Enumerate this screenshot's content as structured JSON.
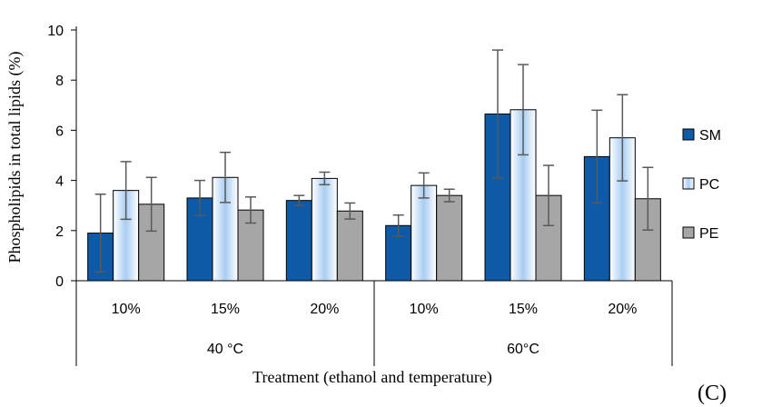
{
  "chart_data": {
    "type": "bar",
    "panel_label": "(C)",
    "ylabel": "Phospholipids in total lipids (%)",
    "xlabel": "Treatment (ethanol and temperature)",
    "ylim": [
      0,
      10
    ],
    "yticks": [
      0,
      2,
      4,
      6,
      8,
      10
    ],
    "categories": [
      "10%",
      "15%",
      "20%",
      "10%",
      "15%",
      "20%"
    ],
    "groups": [
      {
        "label": "40 °C",
        "span": [
          0,
          2
        ]
      },
      {
        "label": "60°C",
        "span": [
          3,
          5
        ]
      }
    ],
    "legend_position": "right",
    "grid": false,
    "series": [
      {
        "name": "SM",
        "color": "#0e5aa7",
        "values": [
          1.9,
          3.3,
          3.2,
          2.2,
          6.65,
          4.95
        ],
        "errors": [
          1.55,
          0.7,
          0.2,
          0.42,
          2.55,
          1.85
        ]
      },
      {
        "name": "PC",
        "color": "#cfe2f7",
        "values": [
          3.6,
          4.12,
          4.08,
          3.8,
          6.82,
          5.7
        ],
        "errors": [
          1.15,
          1.0,
          0.25,
          0.5,
          1.8,
          1.72
        ]
      },
      {
        "name": "PE",
        "color": "#a6a6a6",
        "values": [
          3.05,
          2.82,
          2.78,
          3.4,
          3.4,
          3.27
        ],
        "errors": [
          1.07,
          0.52,
          0.32,
          0.25,
          1.2,
          1.25
        ]
      }
    ]
  }
}
